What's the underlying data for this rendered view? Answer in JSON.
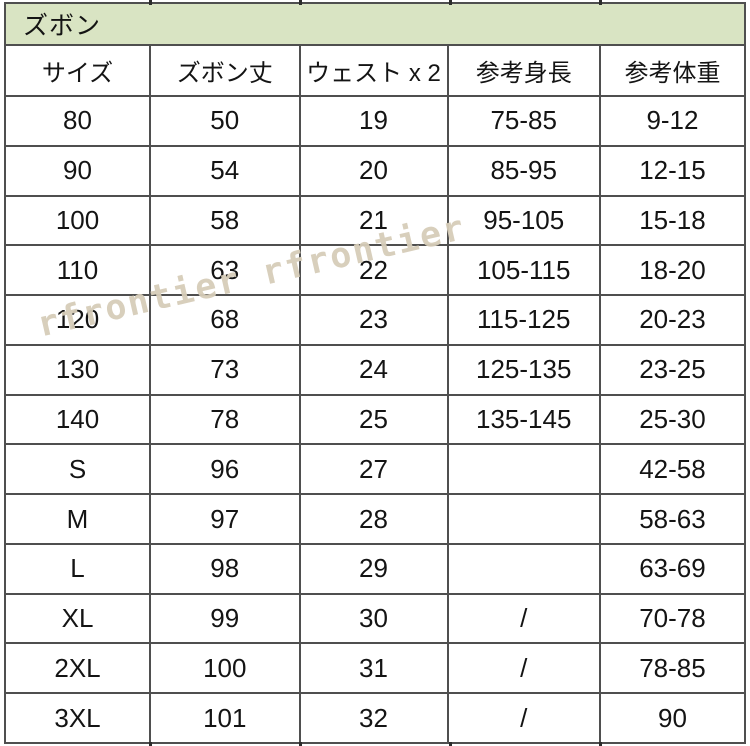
{
  "chart_data": {
    "type": "table",
    "title": "ズボン",
    "columns": [
      "サイズ",
      "ズボン丈",
      "ウェスト x 2",
      "参考身長",
      "参考体重"
    ],
    "rows": [
      [
        "80",
        "50",
        "19",
        "75-85",
        "9-12"
      ],
      [
        "90",
        "54",
        "20",
        "85-95",
        "12-15"
      ],
      [
        "100",
        "58",
        "21",
        "95-105",
        "15-18"
      ],
      [
        "110",
        "63",
        "22",
        "105-115",
        "18-20"
      ],
      [
        "120",
        "68",
        "23",
        "115-125",
        "20-23"
      ],
      [
        "130",
        "73",
        "24",
        "125-135",
        "23-25"
      ],
      [
        "140",
        "78",
        "25",
        "135-145",
        "25-30"
      ],
      [
        "S",
        "96",
        "27",
        "",
        "42-58"
      ],
      [
        "M",
        "97",
        "28",
        "",
        "58-63"
      ],
      [
        "L",
        "98",
        "29",
        "",
        "63-69"
      ],
      [
        "XL",
        "99",
        "30",
        "/",
        "70-78"
      ],
      [
        "2XL",
        "100",
        "31",
        "/",
        "78-85"
      ],
      [
        "3XL",
        "101",
        "32",
        "/",
        "90"
      ]
    ],
    "layout_hints": {
      "title_band": "full-width merged cell, light green background, left-aligned",
      "grid": "all borders dark gray",
      "empty_height_cells_rows": [
        "S",
        "M",
        "L"
      ],
      "slash_height_cells_rows": [
        "XL",
        "2XL",
        "3XL"
      ]
    }
  },
  "watermark": {
    "text": "rfrontier rfrontier"
  },
  "colors": {
    "title_band_bg": "#d9e4c3",
    "grid_border": "#4f4f4f",
    "outer_border": "#3a3a3a",
    "text": "#141414",
    "watermark": "#d6cdb9",
    "corner_marker": "#1e8a1e",
    "background": "#ffffff"
  }
}
